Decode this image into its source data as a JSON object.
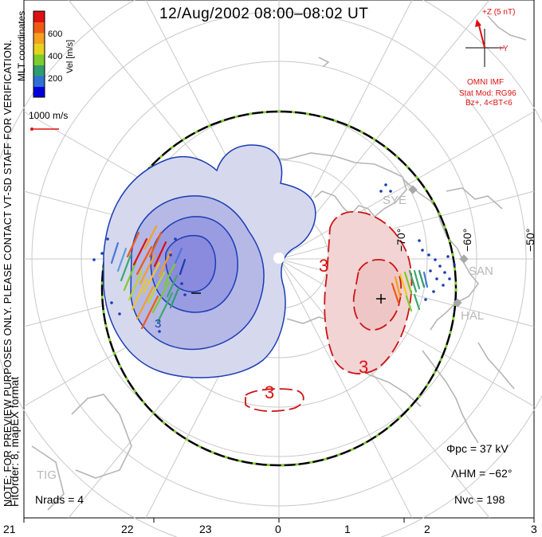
{
  "title": "12/Aug/2002 08:00–08:02 UT",
  "coordinates": "MLT coordinates",
  "colorbar": {
    "label": "Vel [m/s]",
    "ticks": [
      "600",
      "400",
      "200"
    ],
    "colors": [
      "#0000dd",
      "#2f6fd8",
      "#2e9c6e",
      "#7ccc2a",
      "#e6d21e",
      "#f5a01e",
      "#ee5a14",
      "#dd1111"
    ]
  },
  "vector_scale": "1000 m/s",
  "notes": {
    "preview": "NOTE: FOR PREVIEW PURPOSES ONLY. PLEASE CONTACT VT-SD STAFF FOR VERIFICATION.",
    "fit": "FitOrder: 8, mapEX format"
  },
  "imf": {
    "z_label": "+Z (5 nT)",
    "y_label": "+Y",
    "source": "OMNI IMF",
    "stat_model": "Stat Mod: RG96",
    "condition": "Bz+, 4<BT<6"
  },
  "mlt_labels": [
    "21",
    "22",
    "23",
    "0",
    "1",
    "2",
    "3"
  ],
  "lat_labels": [
    "−70°",
    "−60°",
    "−50°"
  ],
  "stations": [
    "SYE",
    "SAN",
    "HAL",
    "TIG"
  ],
  "contour_labels": {
    "negative": "−",
    "positive": "+",
    "value": "3"
  },
  "stats": {
    "phi_pc": "Φpc = 37 kV",
    "lambda_hm": "ΛHM = −62°",
    "n_vc": "Nvc = 198",
    "n_rads": "Nrads = 4"
  }
}
